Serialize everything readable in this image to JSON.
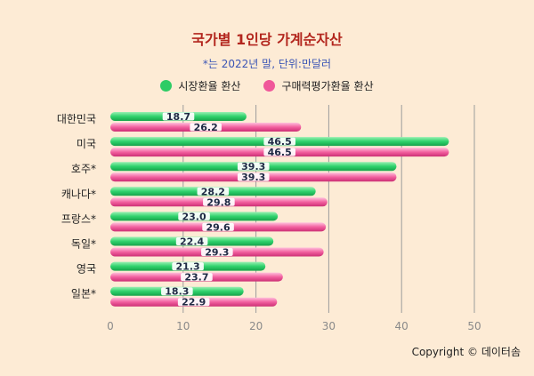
{
  "chart_data": {
    "type": "bar",
    "orientation": "horizontal",
    "title": "국가별 1인당 가계순자산",
    "subtitle": "*는 2022년 말, 단위:만달러",
    "categories": [
      "대한민국",
      "미국",
      "호주*",
      "캐나다*",
      "프랑스*",
      "독일*",
      "영국",
      "일본*"
    ],
    "series": [
      {
        "name": "시장환율 환산",
        "color": "#2ecc65",
        "values": [
          18.7,
          46.5,
          39.3,
          28.2,
          23.0,
          22.4,
          21.3,
          18.3
        ]
      },
      {
        "name": "구매력평가환율 환산",
        "color": "#f0579a",
        "values": [
          26.2,
          46.5,
          39.3,
          29.8,
          29.6,
          29.3,
          23.7,
          22.9
        ]
      }
    ],
    "value_labels": [
      [
        "18.7",
        "46.5",
        "39.3",
        "28.2",
        "23.0",
        "22.4",
        "21.3",
        "18.3"
      ],
      [
        "26.2",
        "46.5",
        "39.3",
        "29.8",
        "29.6",
        "29.3",
        "23.7",
        "22.9"
      ]
    ],
    "xlim": [
      0,
      50
    ],
    "xticks": [
      "0",
      "10",
      "20",
      "30",
      "40",
      "50"
    ],
    "xlabel": "",
    "ylabel": "",
    "grid": "vertical",
    "legend_position": "top-center"
  },
  "footer": {
    "copyright": "Copyright © 데이터솜"
  },
  "colors": {
    "background": "#fdebd5",
    "title": "#b3261e",
    "subtitle": "#3a55b5"
  }
}
